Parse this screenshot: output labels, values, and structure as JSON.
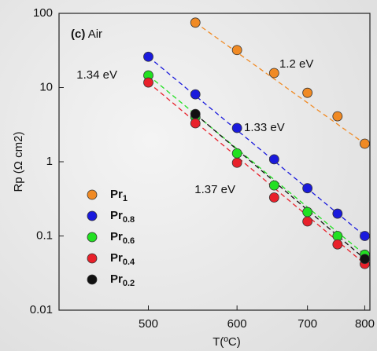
{
  "chart_data": {
    "type": "scatter",
    "panel_label": "(c)",
    "panel_text": "Air",
    "x_label": "T(ºC)",
    "y_label": "Rp (Ω cm2)",
    "x": [
      500,
      550,
      600,
      650,
      700,
      750,
      800
    ],
    "xscale": "reciprocal-kelvin",
    "xlim": [
      420,
      810
    ],
    "xticks": [
      500,
      600,
      700,
      800
    ],
    "yscale": "log",
    "ylim": [
      0.01,
      100
    ],
    "yticks": [
      0.01,
      0.1,
      1,
      10,
      100
    ],
    "trendlines": true,
    "legend": "lower left",
    "series": [
      {
        "name": "Pr1",
        "color": "#f08a24",
        "values": [
          null,
          75,
          32,
          15.7,
          8.5,
          4.1,
          1.75
        ]
      },
      {
        "name": "Pr0.8",
        "color": "#1a1adc",
        "values": [
          26,
          8.1,
          2.85,
          1.08,
          0.44,
          0.2,
          0.1
        ]
      },
      {
        "name": "Pr0.6",
        "color": "#22e022",
        "values": [
          14.6,
          4.0,
          1.3,
          0.48,
          0.21,
          0.1,
          0.056
        ]
      },
      {
        "name": "Pr0.4",
        "color": "#e8202a",
        "values": [
          11.7,
          3.3,
          0.97,
          0.33,
          0.157,
          0.077,
          0.042
        ]
      },
      {
        "name": "Pr0.2",
        "color": "#111111",
        "values": [
          null,
          4.4,
          null,
          null,
          null,
          null,
          0.049
        ]
      }
    ],
    "annotations": [
      {
        "text": "1.2 eV",
        "color": "#f08a24"
      },
      {
        "text": "1.33 eV",
        "color": "#1a1adc"
      },
      {
        "text": "1.34 eV",
        "color": "#22c022"
      },
      {
        "text": "1.37 eV",
        "color": "#e8202a"
      }
    ]
  }
}
